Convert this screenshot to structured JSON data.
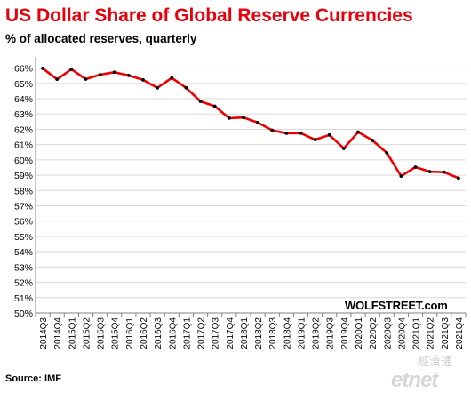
{
  "title": "US Dollar Share of Global  Reserve Currencies",
  "subtitle": "% of allocated reserves, quarterly",
  "source": "Source: IMF",
  "brand": "WOLFSTREET.com",
  "watermark": "etnet",
  "watermark_cn": "經濟通",
  "chart_data": {
    "type": "line",
    "title": "US Dollar Share of Global  Reserve Currencies",
    "subtitle": "% of allocated reserves, quarterly",
    "categories": [
      "2014Q3",
      "2014Q4",
      "2015Q1",
      "2015Q2",
      "2015Q3",
      "2015Q4",
      "2016Q1",
      "2016Q2",
      "2016Q3",
      "2016Q4",
      "2017Q1",
      "2017Q2",
      "2017Q3",
      "2017Q4",
      "2018Q1",
      "2018Q2",
      "2018Q3",
      "2018Q4",
      "2019Q1",
      "2019Q2",
      "2019Q3",
      "2019Q4",
      "2020Q1",
      "2020Q2",
      "2020Q3",
      "2020Q4",
      "2021Q1",
      "2021Q2",
      "2021Q3",
      "2021Q4"
    ],
    "series": [
      {
        "values": [
          65.98,
          65.27,
          65.92,
          65.28,
          65.57,
          65.73,
          65.52,
          65.23,
          64.71,
          65.36,
          64.71,
          63.83,
          63.51,
          62.73,
          62.77,
          62.44,
          61.94,
          61.74,
          61.75,
          61.32,
          61.63,
          60.75,
          61.82,
          61.28,
          60.46,
          58.94,
          59.53,
          59.23,
          59.2,
          58.81
        ],
        "color": "#ee0000"
      }
    ],
    "yticks": [
      "50%",
      "51%",
      "52%",
      "53%",
      "54%",
      "55%",
      "56%",
      "57%",
      "58%",
      "59%",
      "60%",
      "61%",
      "62%",
      "63%",
      "64%",
      "65%",
      "66%"
    ],
    "ylim": [
      50,
      66.5
    ],
    "grid": true,
    "line_color": "#ee0000",
    "marker_color": "#000000"
  }
}
